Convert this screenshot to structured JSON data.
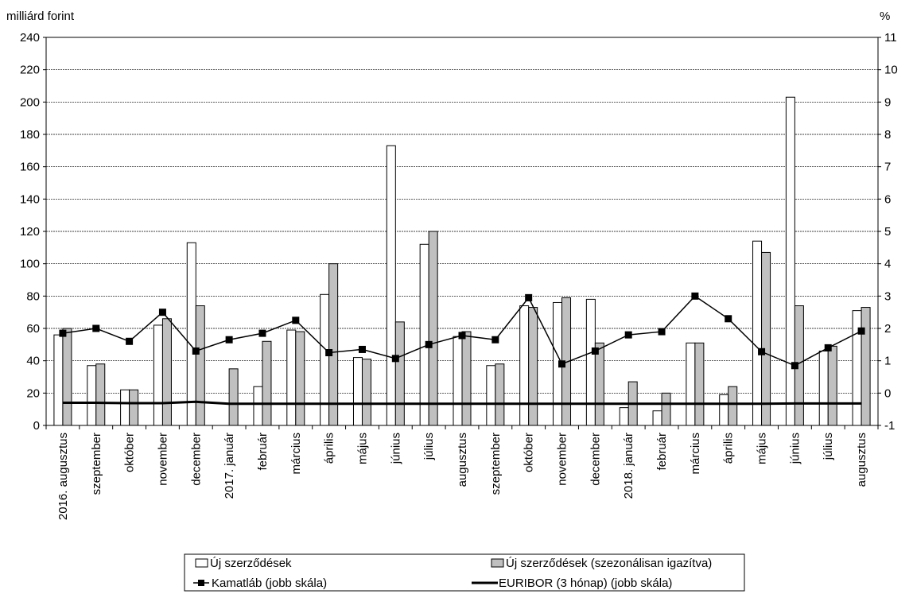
{
  "chart_data": {
    "type": "bar",
    "y_unit_left": "milliárd forint",
    "y_unit_right": "%",
    "ylim_left": [
      0,
      240
    ],
    "yticks_left": [
      "0",
      "20",
      "40",
      "60",
      "80",
      "100",
      "120",
      "140",
      "160",
      "180",
      "200",
      "220",
      "240"
    ],
    "ylim_right": [
      -1,
      11
    ],
    "yticks_right": [
      "-1",
      "0",
      "1",
      "2",
      "3",
      "4",
      "5",
      "6",
      "7",
      "8",
      "9",
      "10",
      "11"
    ],
    "grid": true,
    "legend_position": "bottom",
    "categories": [
      "2016. augusztus",
      "szeptember",
      "október",
      "november",
      "december",
      "2017. január",
      "február",
      "március",
      "április",
      "május",
      "június",
      "július",
      "augusztus",
      "szeptember",
      "október",
      "november",
      "december",
      "2018. január",
      "február",
      "március",
      "április",
      "május",
      "június",
      "július",
      "augusztus"
    ],
    "series": [
      {
        "name": "Új szerződések",
        "kind": "bar",
        "axis": "left",
        "color": "#ffffff",
        "values": [
          56,
          37,
          22,
          62,
          113,
          0,
          24,
          59,
          81,
          42,
          173,
          112,
          55,
          37,
          74,
          76,
          78,
          11,
          9,
          51,
          19,
          114,
          203,
          46,
          71
        ]
      },
      {
        "name": "Új szerződések (szezonálisan igazítva)",
        "kind": "bar",
        "axis": "left",
        "color": "#c0c0c0",
        "values": [
          60,
          38,
          22,
          66,
          74,
          35,
          52,
          58,
          100,
          41,
          64,
          120,
          58,
          38,
          73,
          79,
          51,
          27,
          20,
          51,
          24,
          107,
          74,
          49,
          73
        ]
      },
      {
        "name": "Kamatláb (jobb skála)",
        "kind": "line-marker",
        "axis": "right",
        "color": "#000000",
        "values": [
          1.85,
          2.0,
          1.6,
          2.5,
          1.3,
          1.65,
          1.85,
          2.25,
          1.25,
          1.35,
          1.07,
          1.5,
          1.78,
          1.65,
          2.95,
          0.9,
          1.3,
          1.8,
          1.9,
          3.0,
          2.3,
          1.28,
          0.85,
          1.4,
          1.92
        ]
      },
      {
        "name": "EURIBOR (3 hónap) (jobb skála)",
        "kind": "line",
        "axis": "right",
        "color": "#000000",
        "values": [
          -0.3,
          -0.3,
          -0.31,
          -0.31,
          -0.27,
          -0.33,
          -0.33,
          -0.33,
          -0.33,
          -0.33,
          -0.33,
          -0.33,
          -0.33,
          -0.33,
          -0.33,
          -0.33,
          -0.33,
          -0.33,
          -0.33,
          -0.33,
          -0.33,
          -0.33,
          -0.32,
          -0.32,
          -0.32
        ]
      }
    ]
  }
}
